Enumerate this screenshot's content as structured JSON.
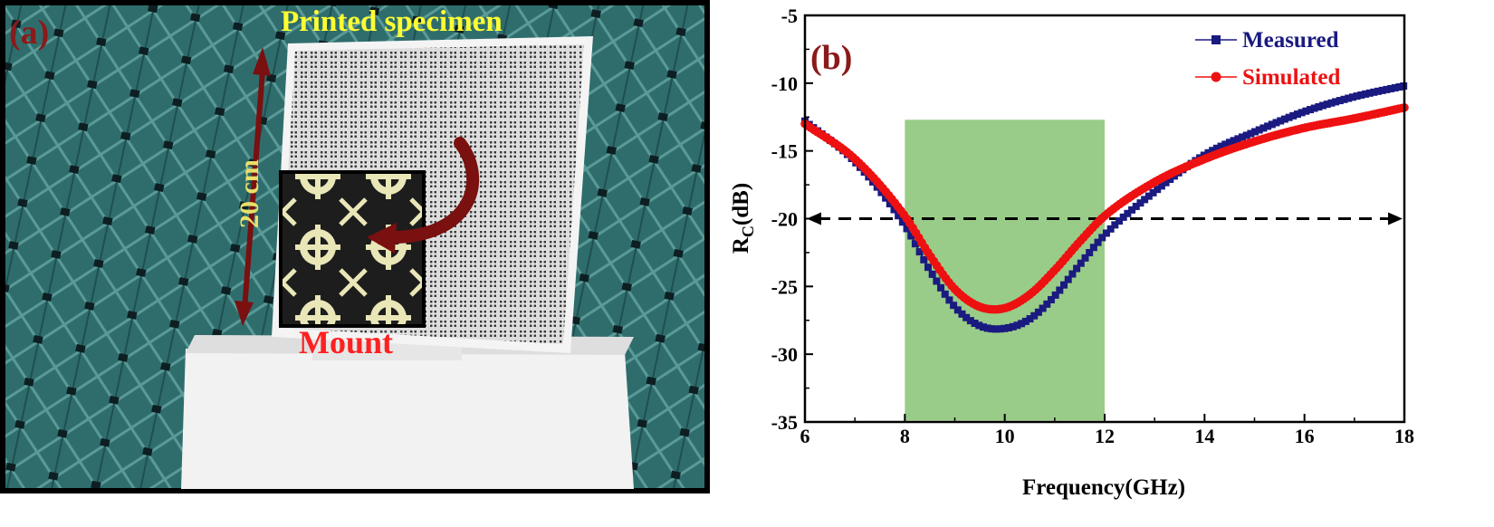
{
  "panel_a": {
    "label": "(a)",
    "specimen_label": "Printed specimen",
    "dimension_label": "20 cm",
    "mount_label": "Mount"
  },
  "chart_data": {
    "type": "line",
    "panel_label": "(b)",
    "xlabel": "Frequency(GHz)",
    "ylabel_main": "R",
    "ylabel_sub": "C",
    "ylabel_unit": "(dB)",
    "xlim": [
      6,
      18
    ],
    "ylim": [
      -35,
      -5
    ],
    "xticks": [
      6,
      8,
      10,
      12,
      14,
      16,
      18
    ],
    "yticks": [
      -5,
      -10,
      -15,
      -20,
      -25,
      -30,
      -35
    ],
    "grid": false,
    "legend_position": "top-right",
    "reference_line": {
      "y": -20,
      "style": "dashed-double-arrow"
    },
    "highlight_band": {
      "x": [
        8,
        12
      ],
      "y": [
        -34.9,
        -12.7
      ],
      "color": "#99cc88"
    },
    "series": [
      {
        "name": "Measured",
        "color": "#1a1a80",
        "marker": "square",
        "x": [
          6,
          7,
          8,
          8.5,
          9,
          9.5,
          10,
          10.5,
          11,
          11.5,
          12,
          13,
          14,
          15,
          16,
          17,
          18
        ],
        "y": [
          -12.8,
          -15.8,
          -20.5,
          -23.8,
          -26.5,
          -27.9,
          -28.1,
          -27.4,
          -25.7,
          -23.4,
          -21.2,
          -18.0,
          -15.3,
          -13.6,
          -12.1,
          -11.0,
          -10.2
        ]
      },
      {
        "name": "Simulated",
        "color": "#ee1111",
        "marker": "circle",
        "x": [
          6,
          7,
          8,
          8.5,
          9,
          9.5,
          10,
          10.5,
          11,
          11.5,
          12,
          13,
          14,
          15,
          16,
          17,
          18
        ],
        "y": [
          -13.0,
          -15.6,
          -19.8,
          -22.7,
          -25.2,
          -26.5,
          -26.6,
          -25.6,
          -23.8,
          -21.7,
          -19.8,
          -17.3,
          -15.6,
          -14.3,
          -13.3,
          -12.6,
          -11.8
        ]
      }
    ]
  }
}
